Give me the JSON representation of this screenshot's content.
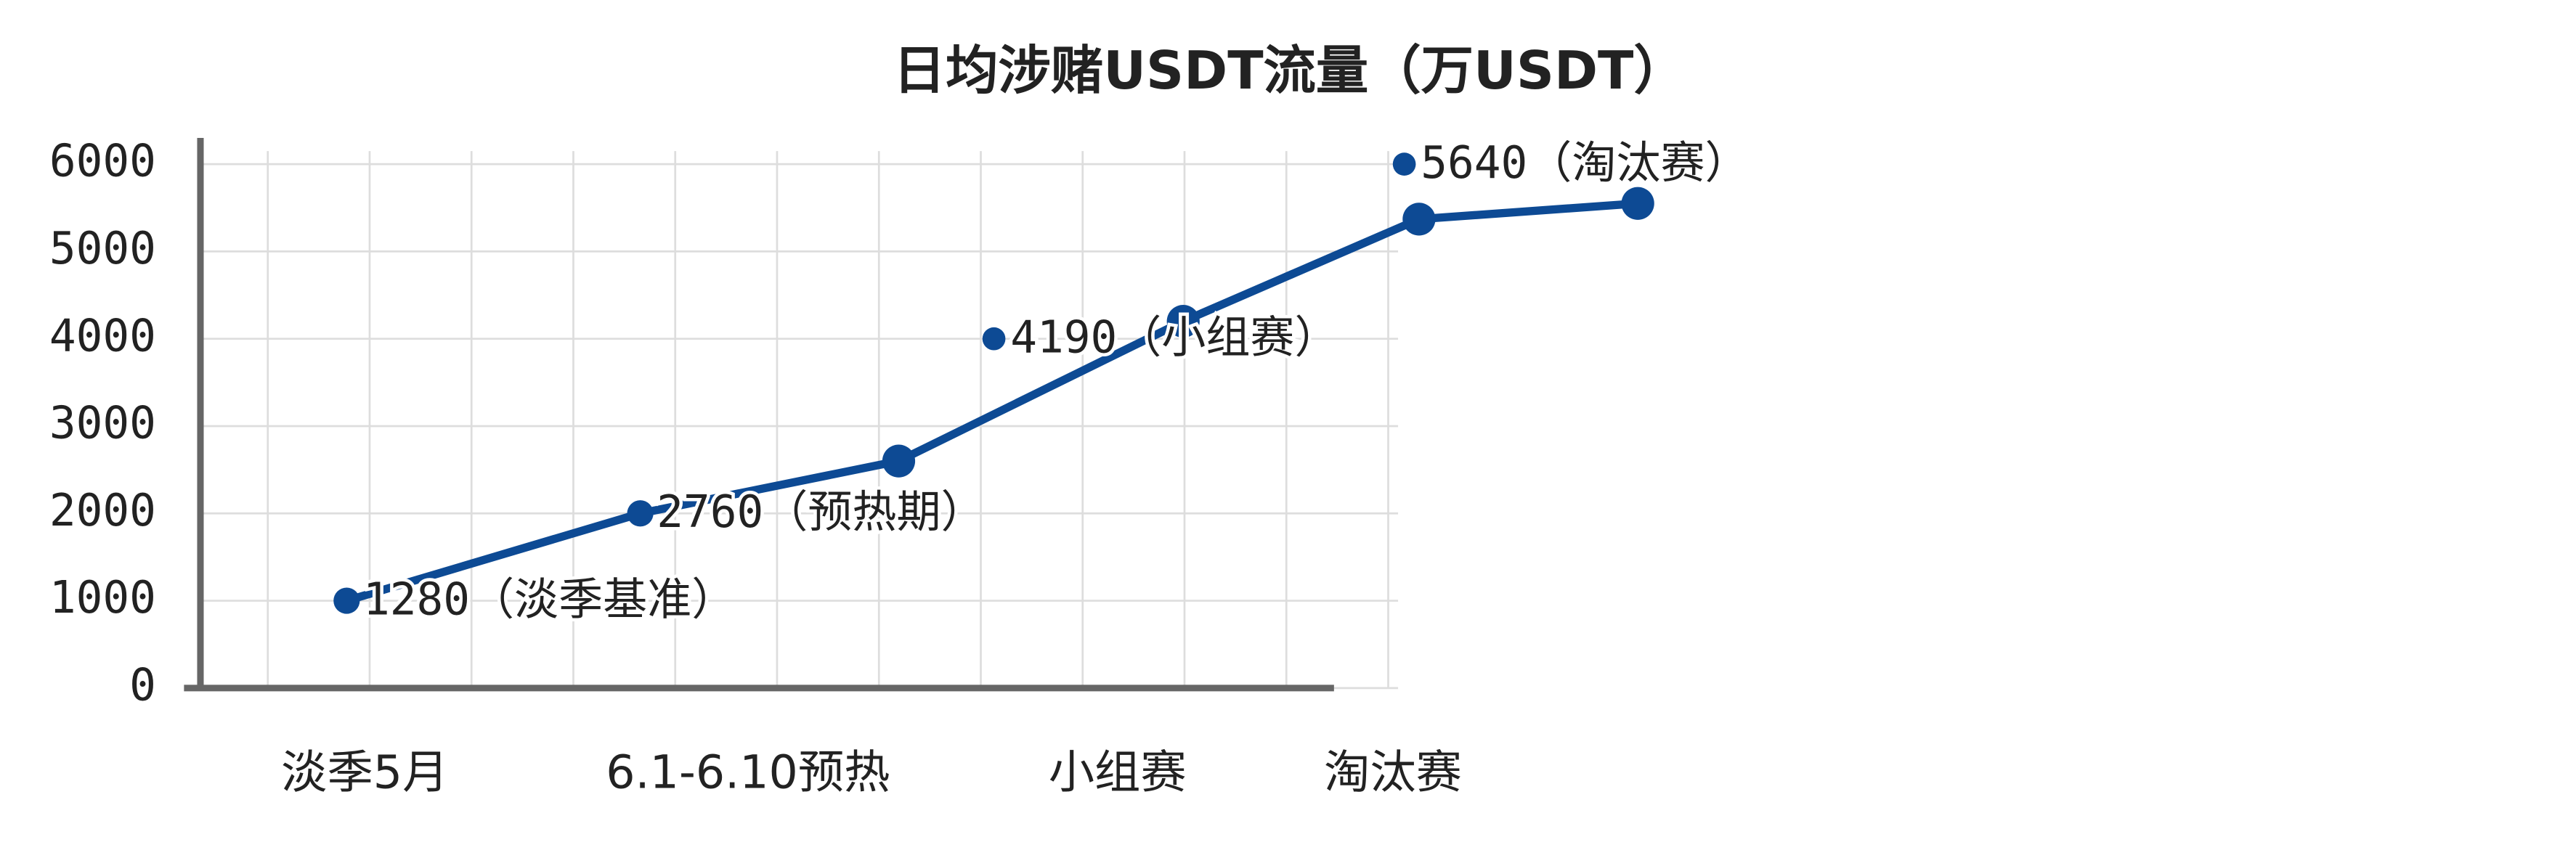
{
  "chart_data": {
    "type": "line",
    "title": "日均涉赌USDT流量（万USDT）",
    "x": [
      1.29,
      3.88,
      6.16,
      8.67,
      10.75,
      12.68
    ],
    "series": [
      {
        "color": "#0d4a94",
        "values": [
          1000,
          2000,
          2600,
          4200,
          5370,
          5550
        ]
      }
    ],
    "points": {
      "color": "#0d4a94",
      "x": [
        7.0,
        10.62
      ],
      "values": [
        4000,
        6000
      ]
    },
    "annotations": [
      "1280（淡季基准）",
      "2760（预热期）",
      "4190（小组赛）",
      "5640（淘汰赛）"
    ],
    "xlim": [
      0,
      14
    ],
    "xticks": [
      {
        "value": 1.45,
        "label": "淡季5月"
      },
      {
        "value": 4.83,
        "label": "6.1-6.10预热"
      },
      {
        "value": 8.09,
        "label": "小组赛"
      },
      {
        "value": 10.52,
        "label": "淘汰赛"
      }
    ],
    "ylim": [
      0,
      6300
    ],
    "yticks": [
      0,
      1000,
      2000,
      3000,
      4000,
      5000,
      6000
    ],
    "grid": true
  }
}
